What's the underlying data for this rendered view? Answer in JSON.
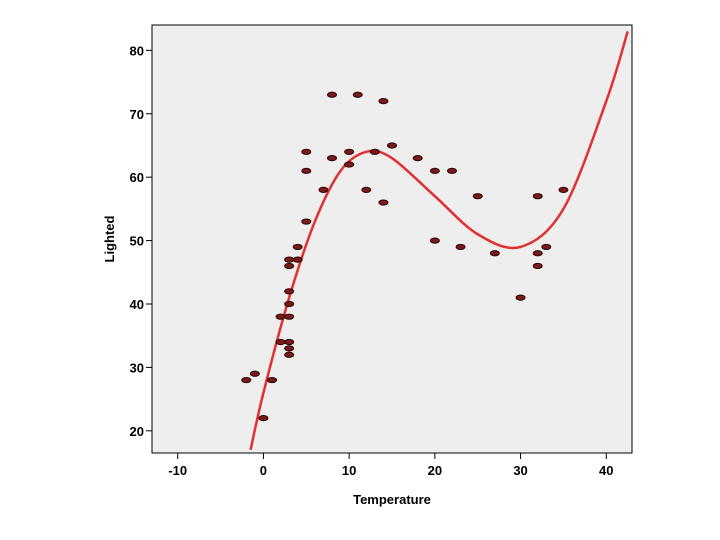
{
  "chart_data": {
    "type": "scatter",
    "xlabel": "Temperature",
    "ylabel": "Lighted",
    "xlim": [
      -13,
      43
    ],
    "ylim": [
      16.5,
      84
    ],
    "x_ticks": [
      -10,
      0,
      10,
      20,
      30,
      40
    ],
    "y_ticks": [
      20,
      30,
      40,
      50,
      60,
      70,
      80
    ],
    "grid": false,
    "plot_background": "#eeeeee",
    "marker_color": "#7a1a1a",
    "fit_line_color": "#e03030",
    "points": [
      {
        "x": -2,
        "y": 28
      },
      {
        "x": -1,
        "y": 29
      },
      {
        "x": 0,
        "y": 22
      },
      {
        "x": 1,
        "y": 28
      },
      {
        "x": 2,
        "y": 34
      },
      {
        "x": 2,
        "y": 38
      },
      {
        "x": 3,
        "y": 32
      },
      {
        "x": 3,
        "y": 33
      },
      {
        "x": 3,
        "y": 34
      },
      {
        "x": 3,
        "y": 38
      },
      {
        "x": 3,
        "y": 40
      },
      {
        "x": 3,
        "y": 42
      },
      {
        "x": 3,
        "y": 46
      },
      {
        "x": 3,
        "y": 47
      },
      {
        "x": 4,
        "y": 47
      },
      {
        "x": 4,
        "y": 49
      },
      {
        "x": 5,
        "y": 53
      },
      {
        "x": 5,
        "y": 61
      },
      {
        "x": 5,
        "y": 64
      },
      {
        "x": 7,
        "y": 58
      },
      {
        "x": 8,
        "y": 63
      },
      {
        "x": 8,
        "y": 73
      },
      {
        "x": 10,
        "y": 62
      },
      {
        "x": 10,
        "y": 64
      },
      {
        "x": 11,
        "y": 73
      },
      {
        "x": 12,
        "y": 58
      },
      {
        "x": 13,
        "y": 64
      },
      {
        "x": 14,
        "y": 56
      },
      {
        "x": 14,
        "y": 72
      },
      {
        "x": 15,
        "y": 65
      },
      {
        "x": 18,
        "y": 63
      },
      {
        "x": 20,
        "y": 50
      },
      {
        "x": 20,
        "y": 61
      },
      {
        "x": 22,
        "y": 61
      },
      {
        "x": 23,
        "y": 49
      },
      {
        "x": 25,
        "y": 57
      },
      {
        "x": 27,
        "y": 48
      },
      {
        "x": 30,
        "y": 41
      },
      {
        "x": 32,
        "y": 46
      },
      {
        "x": 32,
        "y": 48
      },
      {
        "x": 32,
        "y": 57
      },
      {
        "x": 33,
        "y": 49
      },
      {
        "x": 35,
        "y": 58
      }
    ],
    "fit_curve": {
      "type": "cubic",
      "points": [
        {
          "x": -1.5,
          "y": 17
        },
        {
          "x": 0,
          "y": 26
        },
        {
          "x": 3,
          "y": 41
        },
        {
          "x": 6,
          "y": 53
        },
        {
          "x": 9,
          "y": 61
        },
        {
          "x": 12,
          "y": 64
        },
        {
          "x": 15,
          "y": 63
        },
        {
          "x": 20,
          "y": 57
        },
        {
          "x": 25,
          "y": 51
        },
        {
          "x": 30,
          "y": 49
        },
        {
          "x": 35,
          "y": 55
        },
        {
          "x": 40,
          "y": 72
        },
        {
          "x": 42.5,
          "y": 83
        }
      ]
    }
  }
}
